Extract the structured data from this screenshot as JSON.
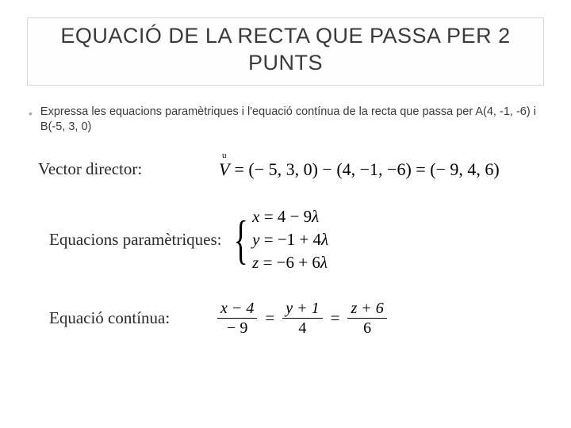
{
  "title": "EQUACIÓ DE LA RECTA QUE PASSA PER 2 PUNTS",
  "problem": "Expressa les equacions paramètriques i l'equació contínua de la recta que passa per A(4, -1, -6) i B(-5, 3, 0)",
  "labels": {
    "vector": "Vector director:",
    "parametric": "Equacions paramètriques:",
    "continuous": "Equació contínua:"
  },
  "vector_eq": {
    "symbol": "V",
    "rhs": "= (− 5, 3, 0) − (4, −1, −6) = (− 9, 4, 6)"
  },
  "parametric": {
    "l1_lhs": "x",
    "l1_rhs": "= 4 − 9",
    "l1_lambda": "λ",
    "l2_lhs": "y",
    "l2_rhs": "= −1 + 4",
    "l2_lambda": "λ",
    "l3_lhs": "z",
    "l3_rhs": "= −6 + 6",
    "l3_lambda": "λ"
  },
  "continuous": {
    "f1_num": "x − 4",
    "f1_den": "− 9",
    "f2_num": "y + 1",
    "f2_den": "4",
    "f3_num": "z + 6",
    "f3_den": "6"
  },
  "style": {
    "bg": "#ffffff",
    "title_border": "#d8d8d8",
    "title_color": "#3a3a3a",
    "title_fontsize": 27,
    "body_color": "#3a3a3a",
    "problem_fontsize": 14.5,
    "label_font": "Times New Roman, serif",
    "label_fontsize": 21,
    "math_color": "#000000",
    "math_fontsize": 22,
    "brace_fontsize": 68
  }
}
